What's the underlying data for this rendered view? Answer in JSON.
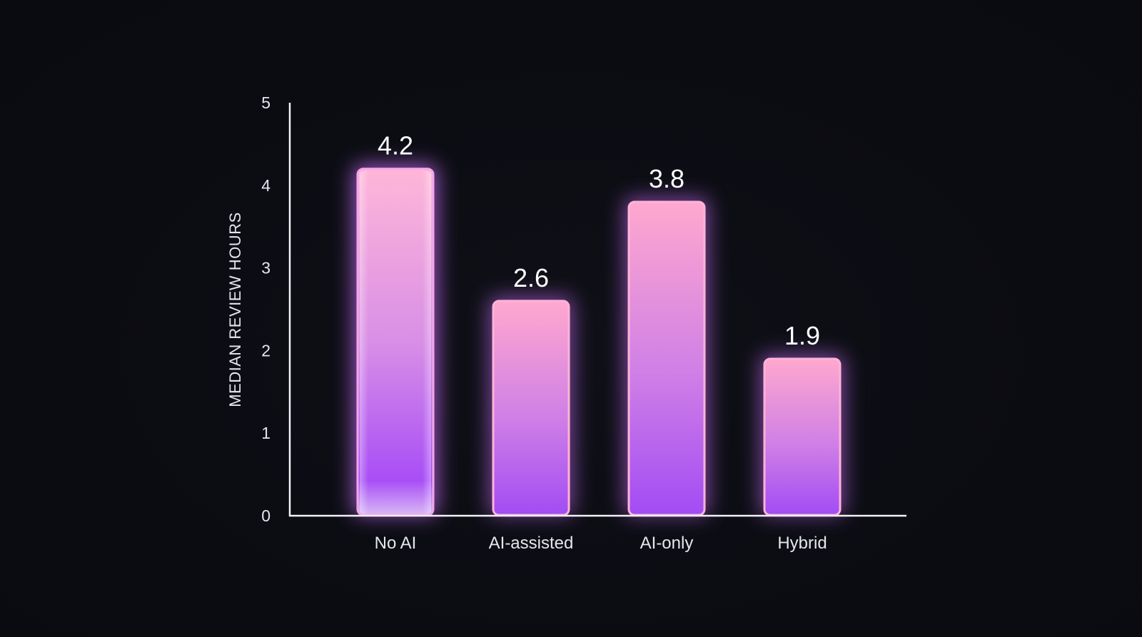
{
  "chart_data": {
    "type": "bar",
    "categories": [
      "No AI",
      "AI-assisted",
      "AI-only",
      "Hybrid"
    ],
    "values": [
      4.2,
      2.6,
      3.8,
      1.9
    ],
    "value_labels": [
      "4.2",
      "2.6",
      "3.8",
      "1.9"
    ],
    "title": "",
    "xlabel": "",
    "ylabel": "MEDIAN REVIEW HOURS",
    "ylim": [
      0,
      5
    ],
    "yticks": [
      "0",
      "1",
      "2",
      "3",
      "4",
      "5"
    ],
    "grid": false,
    "legend": "none",
    "highlight_index": 0,
    "colors": {
      "background": "#0c0d13",
      "axis": "#f2f2f7",
      "bar_top": "#ffa8cf",
      "bar_bottom": "#a24cf4",
      "glow": "#c26bf5",
      "text": "#e6e6ee"
    }
  }
}
